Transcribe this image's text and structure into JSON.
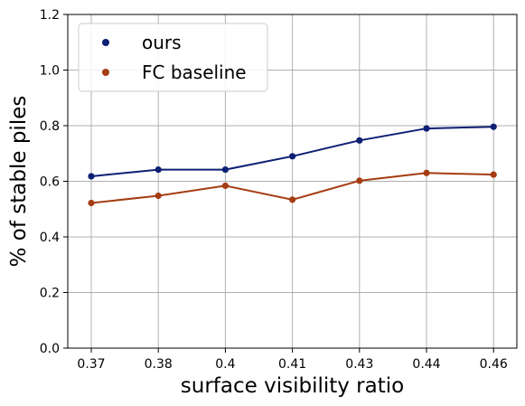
{
  "chart_data": {
    "type": "line",
    "categories": [
      "0.37",
      "0.38",
      "0.4",
      "0.41",
      "0.43",
      "0.44",
      "0.46"
    ],
    "series": [
      {
        "name": "ours",
        "values": [
          0.618,
          0.642,
          0.642,
          0.69,
          0.747,
          0.79,
          0.796
        ],
        "color": "#0c1f74"
      },
      {
        "name": "FC baseline",
        "values": [
          0.522,
          0.548,
          0.584,
          0.534,
          0.602,
          0.63,
          0.624
        ],
        "color": "#a53c12"
      }
    ],
    "xlabel": "surface visibility ratio",
    "ylabel": "% of stable piles",
    "ylim": [
      0,
      1.2
    ],
    "yticks": [
      "0.0",
      "0.2",
      "0.4",
      "0.6",
      "0.8",
      "1.0",
      "1.2"
    ],
    "grid": true,
    "legend_position": "top-left"
  }
}
